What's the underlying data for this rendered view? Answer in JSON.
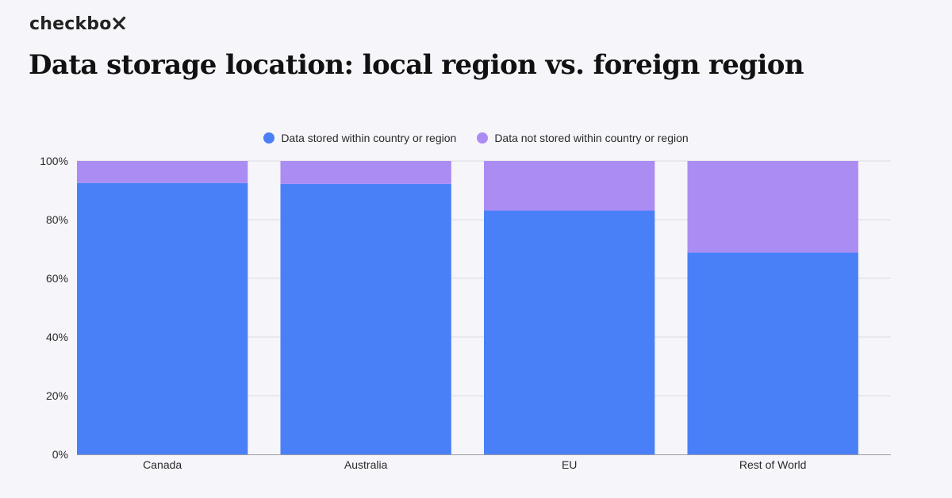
{
  "brand": {
    "name": "checkbo"
  },
  "title": "Data storage location: local region vs. foreign region",
  "colors": {
    "local": "#4a80f7",
    "foreign": "#ab8cf3",
    "grid": "#dcdce2",
    "axis": "#9a9aa3"
  },
  "chart_data": {
    "type": "bar",
    "stacked": true,
    "categories": [
      "Canada",
      "Australia",
      "EU",
      "Rest of World"
    ],
    "series": [
      {
        "name": "Data stored within country or region",
        "color": "#4a80f7",
        "values": [
          92.5,
          92.2,
          83.1,
          68.8
        ]
      },
      {
        "name": "Data not stored within country or region",
        "color": "#ab8cf3",
        "values": [
          7.5,
          7.8,
          16.9,
          31.2
        ]
      }
    ],
    "ylim": [
      0,
      100
    ],
    "yticks": [
      0,
      20,
      40,
      60,
      80,
      100
    ],
    "ytick_labels": [
      "0%",
      "20%",
      "40%",
      "60%",
      "80%",
      "100%"
    ],
    "grid": true,
    "legend_position": "top-center"
  }
}
